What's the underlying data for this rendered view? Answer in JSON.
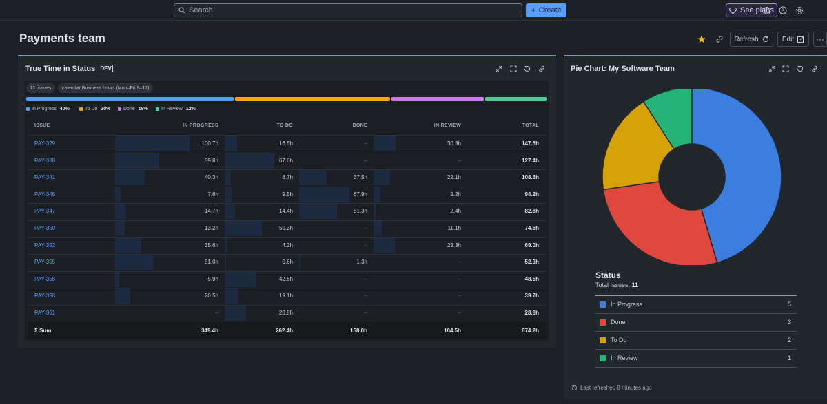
{
  "topbar": {
    "search_placeholder": "Search",
    "create_label": "Create",
    "see_plans_label": "See plans"
  },
  "page": {
    "title": "Payments team",
    "refresh_label": "Refresh",
    "edit_label": "Edit"
  },
  "tis_panel": {
    "title": "True Time in Status",
    "tag": "DEV",
    "issues_count": "11",
    "issues_label": "issues",
    "calendar_chip": "calendar Business hours (Mon–Fri 9–17)",
    "distribution": [
      {
        "label": "In Progress",
        "pct": "40%",
        "fraction": 0.4,
        "color": "#579dff"
      },
      {
        "label": "To Do",
        "pct": "30%",
        "fraction": 0.3,
        "color": "#f5a70a"
      },
      {
        "label": "Done",
        "pct": "18%",
        "fraction": 0.18,
        "color": "#c97cf4"
      },
      {
        "label": "In Review",
        "pct": "12%",
        "fraction": 0.12,
        "color": "#4bce97"
      }
    ],
    "columns": [
      "ISSUE",
      "IN PROGRESS",
      "TO DO",
      "DONE",
      "IN REVIEW",
      "TOTAL"
    ],
    "rows": [
      {
        "issue": "PAY-329",
        "inprogress": "100.7h",
        "todo": "16.5h",
        "done": "–",
        "inreview": "30.3h",
        "total": "147.5h",
        "ip_v": 100.7,
        "td_v": 16.5,
        "dn_v": 0,
        "ir_v": 30.3
      },
      {
        "issue": "PAY-338",
        "inprogress": "59.8h",
        "todo": "67.6h",
        "done": "–",
        "inreview": "–",
        "total": "127.4h",
        "ip_v": 59.8,
        "td_v": 67.6,
        "dn_v": 0,
        "ir_v": 0
      },
      {
        "issue": "PAY-341",
        "inprogress": "40.3h",
        "todo": "8.7h",
        "done": "37.5h",
        "inreview": "22.1h",
        "total": "108.6h",
        "ip_v": 40.3,
        "td_v": 8.7,
        "dn_v": 37.5,
        "ir_v": 22.1
      },
      {
        "issue": "PAY-345",
        "inprogress": "7.6h",
        "todo": "9.5h",
        "done": "67.9h",
        "inreview": "9.2h",
        "total": "94.2h",
        "ip_v": 7.6,
        "td_v": 9.5,
        "dn_v": 67.9,
        "ir_v": 9.2
      },
      {
        "issue": "PAY-347",
        "inprogress": "14.7h",
        "todo": "14.4h",
        "done": "51.3h",
        "inreview": "2.4h",
        "total": "82.8h",
        "ip_v": 14.7,
        "td_v": 14.4,
        "dn_v": 51.3,
        "ir_v": 2.4
      },
      {
        "issue": "PAY-350",
        "inprogress": "13.2h",
        "todo": "50.3h",
        "done": "–",
        "inreview": "11.1h",
        "total": "74.6h",
        "ip_v": 13.2,
        "td_v": 50.3,
        "dn_v": 0,
        "ir_v": 11.1
      },
      {
        "issue": "PAY-352",
        "inprogress": "35.6h",
        "todo": "4.2h",
        "done": "–",
        "inreview": "29.3h",
        "total": "69.0h",
        "ip_v": 35.6,
        "td_v": 4.2,
        "dn_v": 0,
        "ir_v": 29.3
      },
      {
        "issue": "PAY-355",
        "inprogress": "51.0h",
        "todo": "0.6h",
        "done": "1.3h",
        "inreview": "–",
        "total": "52.9h",
        "ip_v": 51.0,
        "td_v": 0.6,
        "dn_v": 1.3,
        "ir_v": 0
      },
      {
        "issue": "PAY-356",
        "inprogress": "5.9h",
        "todo": "42.6h",
        "done": "–",
        "inreview": "–",
        "total": "48.5h",
        "ip_v": 5.9,
        "td_v": 42.6,
        "dn_v": 0,
        "ir_v": 0
      },
      {
        "issue": "PAY-358",
        "inprogress": "20.5h",
        "todo": "19.1h",
        "done": "–",
        "inreview": "–",
        "total": "39.7h",
        "ip_v": 20.5,
        "td_v": 19.1,
        "dn_v": 0,
        "ir_v": 0
      },
      {
        "issue": "PAY-361",
        "inprogress": "–",
        "todo": "28.8h",
        "done": "–",
        "inreview": "–",
        "total": "28.8h",
        "ip_v": 0,
        "td_v": 28.8,
        "dn_v": 0,
        "ir_v": 0
      }
    ],
    "sum": {
      "label": "Σ Sum",
      "inprogress": "349.4h",
      "todo": "262.4h",
      "done": "158.0h",
      "inreview": "104.5h",
      "total": "874.2h"
    }
  },
  "pie_panel": {
    "title": "Pie Chart: My Software Team",
    "legend_title": "Status",
    "total_label": "Total Issues:",
    "total_value": "11",
    "last_refreshed": "Last refreshed 8 minutes ago"
  },
  "chart_data": {
    "type": "pie",
    "title": "Pie Chart: My Software Team",
    "categories": [
      "In Progress",
      "Done",
      "To Do",
      "In Review"
    ],
    "values": [
      5,
      3,
      2,
      1
    ],
    "colors": [
      "#3b7ee0",
      "#e0483f",
      "#d4a106",
      "#24b376"
    ],
    "donut": true
  }
}
